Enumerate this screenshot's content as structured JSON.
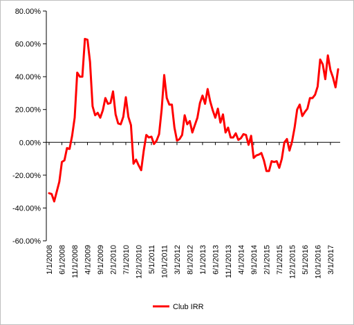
{
  "chart_data": {
    "type": "line",
    "title": "",
    "xlabel": "",
    "ylabel": "",
    "ylim": [
      -60,
      80
    ],
    "yticks": [
      -60,
      -40,
      -20,
      0,
      20,
      40,
      60,
      80
    ],
    "ytick_labels": [
      "-60.00%",
      "-40.00%",
      "-20.00%",
      "0.00%",
      "20.00%",
      "40.00%",
      "60.00%",
      "80.00%"
    ],
    "xlim": [
      "1/1/2008",
      "6/1/2017"
    ],
    "xtick_labels": [
      "1/1/2008",
      "6/1/2008",
      "11/1/2008",
      "4/1/2009",
      "9/1/2009",
      "2/1/2010",
      "7/1/2010",
      "12/1/2010",
      "5/1/2011",
      "10/1/2011",
      "3/1/2012",
      "8/1/2012",
      "1/1/2013",
      "6/1/2013",
      "11/1/2013",
      "4/1/2014",
      "9/1/2014",
      "2/1/2015",
      "7/1/2015",
      "12/1/2015",
      "5/1/2016",
      "10/1/2016",
      "3/1/2017"
    ],
    "grid": false,
    "legend_position": "bottom",
    "series": [
      {
        "name": "Club IRR",
        "color": "#ff0000",
        "x": [
          "1/1/2008",
          "2/1/2008",
          "3/1/2008",
          "4/1/2008",
          "5/1/2008",
          "6/1/2008",
          "7/1/2008",
          "8/1/2008",
          "9/1/2008",
          "10/1/2008",
          "11/1/2008",
          "12/1/2008",
          "1/1/2009",
          "2/1/2009",
          "3/1/2009",
          "4/1/2009",
          "5/1/2009",
          "6/1/2009",
          "7/1/2009",
          "8/1/2009",
          "9/1/2009",
          "10/1/2009",
          "11/1/2009",
          "12/1/2009",
          "1/1/2010",
          "2/1/2010",
          "3/1/2010",
          "4/1/2010",
          "5/1/2010",
          "6/1/2010",
          "7/1/2010",
          "8/1/2010",
          "9/1/2010",
          "10/1/2010",
          "11/1/2010",
          "12/1/2010",
          "1/1/2011",
          "2/1/2011",
          "3/1/2011",
          "4/1/2011",
          "5/1/2011",
          "6/1/2011",
          "7/1/2011",
          "8/1/2011",
          "9/1/2011",
          "10/1/2011",
          "11/1/2011",
          "12/1/2011",
          "1/1/2012",
          "2/1/2012",
          "3/1/2012",
          "4/1/2012",
          "5/1/2012",
          "6/1/2012",
          "7/1/2012",
          "8/1/2012",
          "9/1/2012",
          "10/1/2012",
          "11/1/2012",
          "12/1/2012",
          "1/1/2013",
          "2/1/2013",
          "3/1/2013",
          "4/1/2013",
          "5/1/2013",
          "6/1/2013",
          "7/1/2013",
          "8/1/2013",
          "9/1/2013",
          "10/1/2013",
          "11/1/2013",
          "12/1/2013",
          "1/1/2014",
          "2/1/2014",
          "3/1/2014",
          "4/1/2014",
          "5/1/2014",
          "6/1/2014",
          "7/1/2014",
          "8/1/2014",
          "9/1/2014",
          "10/1/2014",
          "11/1/2014",
          "12/1/2014",
          "1/1/2015",
          "2/1/2015",
          "3/1/2015",
          "4/1/2015",
          "5/1/2015",
          "6/1/2015",
          "7/1/2015",
          "8/1/2015",
          "9/1/2015",
          "10/1/2015",
          "11/1/2015",
          "12/1/2015",
          "1/1/2016",
          "2/1/2016",
          "3/1/2016",
          "4/1/2016",
          "5/1/2016",
          "6/1/2016",
          "7/1/2016",
          "8/1/2016",
          "9/1/2016",
          "10/1/2016",
          "11/1/2016",
          "12/1/2016",
          "1/1/2017",
          "2/1/2017",
          "3/1/2017",
          "4/1/2017",
          "5/1/2017",
          "6/1/2017"
        ],
        "values": [
          -31,
          -31.5,
          -36,
          -30,
          -24,
          -12,
          -11,
          -3.5,
          -4,
          4,
          15,
          42.5,
          40,
          40,
          63,
          62.5,
          49,
          22,
          16.5,
          18,
          15,
          19.5,
          27,
          23.5,
          24,
          31,
          17,
          11.5,
          11,
          15.5,
          27.5,
          15.5,
          10.5,
          -13,
          -10.5,
          -14,
          -17,
          -5,
          4.5,
          3,
          3.5,
          -1,
          1,
          5,
          20,
          41,
          27,
          23,
          23,
          9,
          1,
          2,
          4.5,
          16.5,
          11,
          13,
          6,
          10.5,
          15,
          24,
          28.5,
          23.5,
          32.5,
          25,
          19.5,
          15,
          20.5,
          12,
          17,
          6,
          9,
          3,
          3,
          5.5,
          1.5,
          2.5,
          5,
          4.5,
          -1.5,
          4,
          -9.5,
          -8,
          -7.5,
          -6.5,
          -11,
          -17.5,
          -17.5,
          -11.5,
          -12,
          -11.5,
          -15.5,
          -10,
          0,
          2,
          -5,
          0.5,
          9,
          20,
          23,
          16,
          18.5,
          20.5,
          27,
          27,
          29,
          34,
          50.5,
          47.5,
          38.5,
          53,
          44,
          39.5,
          33.5,
          44.5
        ]
      }
    ]
  }
}
